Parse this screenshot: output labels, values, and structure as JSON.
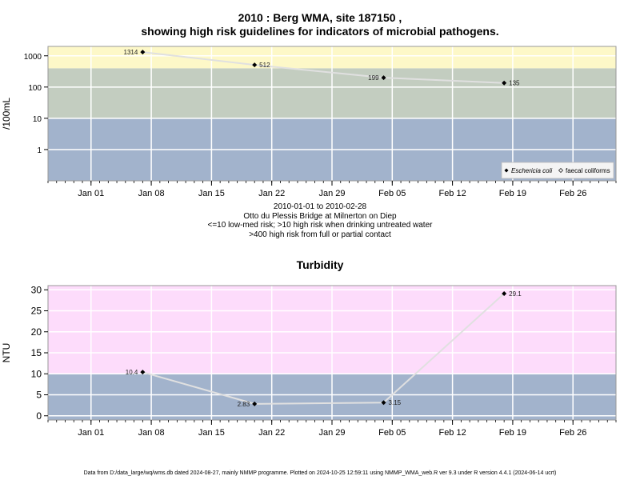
{
  "chart_data": [
    {
      "type": "line",
      "title_line1": "2010 : Berg WMA, site 187150 ,",
      "title_line2": "showing high risk guidelines for indicators of microbial pathogens.",
      "ylabel": "/100mL",
      "yscale": "log",
      "ylim": [
        0.1,
        2000
      ],
      "yticks": [
        1,
        10,
        100,
        1000
      ],
      "ytick_labels": [
        "1",
        "10",
        "100",
        "1000"
      ],
      "xlim": [
        "2009-12-27",
        "2010-03-03"
      ],
      "xticks": [
        "2010-01-01",
        "2010-01-08",
        "2010-01-15",
        "2010-01-22",
        "2010-01-29",
        "2010-02-05",
        "2010-02-12",
        "2010-02-19",
        "2010-02-26"
      ],
      "xtick_labels": [
        "Jan 01",
        "Jan 08",
        "Jan 15",
        "Jan 22",
        "Jan 29",
        "Feb 05",
        "Feb 12",
        "Feb 19",
        "Feb 26"
      ],
      "grid": true,
      "bands": [
        {
          "from": 0.1,
          "to": 10,
          "color": "#a2b3cc"
        },
        {
          "from": 10,
          "to": 400,
          "color": "#c3cdc0"
        },
        {
          "from": 400,
          "to": 2000,
          "color": "#fdf8c8"
        }
      ],
      "series": [
        {
          "name": "Eschericia coli",
          "marker": "filled-diamond",
          "x": [
            "2010-01-07",
            "2010-01-20",
            "2010-02-04",
            "2010-02-18"
          ],
          "values": [
            1314,
            512,
            199,
            135
          ],
          "labels": [
            "1314",
            "512",
            "199",
            "135"
          ],
          "label_side": [
            "left",
            "right",
            "left",
            "right"
          ]
        }
      ],
      "legend": {
        "placement": "bottom-right",
        "entries": [
          "Eschericia coli",
          "faecal coliforms"
        ]
      }
    },
    {
      "type": "line",
      "title": "Turbidity",
      "ylabel": "NTU",
      "yscale": "linear",
      "ylim": [
        -1,
        31
      ],
      "yticks": [
        0,
        5,
        10,
        15,
        20,
        25,
        30
      ],
      "ytick_labels": [
        "0",
        "5",
        "10",
        "15",
        "20",
        "25",
        "30"
      ],
      "xlim": [
        "2009-12-27",
        "2010-03-03"
      ],
      "xticks": [
        "2010-01-01",
        "2010-01-08",
        "2010-01-15",
        "2010-01-22",
        "2010-01-29",
        "2010-02-05",
        "2010-02-12",
        "2010-02-19",
        "2010-02-26"
      ],
      "xtick_labels": [
        "Jan 01",
        "Jan 08",
        "Jan 15",
        "Jan 22",
        "Jan 29",
        "Feb 05",
        "Feb 12",
        "Feb 19",
        "Feb 26"
      ],
      "grid": true,
      "bands": [
        {
          "from": -1,
          "to": 10,
          "color": "#a2b3cc"
        },
        {
          "from": 10,
          "to": 31,
          "color": "#fddcfb"
        }
      ],
      "series": [
        {
          "marker": "filled-diamond",
          "x": [
            "2010-01-07",
            "2010-01-20",
            "2010-02-04",
            "2010-02-18"
          ],
          "values": [
            10.4,
            2.83,
            3.15,
            29.1
          ],
          "labels": [
            "10.4",
            "2.83",
            "3.15",
            "29.1"
          ],
          "label_side": [
            "left",
            "left",
            "right",
            "right"
          ]
        }
      ]
    }
  ],
  "captions": {
    "line1": "2010-01-01 to 2010-02-28",
    "line2": "Otto du Plessis Bridge at Milnerton on Diep",
    "line3": "<=10 low-med risk; >10 high risk when drinking untreated water",
    "line4": ">400 high risk from full or partial contact"
  },
  "footer": "Data from D:/data_large/wq/wms.db dated 2024-08-27, mainly NMMP programme. Plotted on 2024-10-25 12:59:11 using NMMP_WMA_web.R ver 9.3 under R version 4.4.1 (2024-06-14 ucrt)"
}
